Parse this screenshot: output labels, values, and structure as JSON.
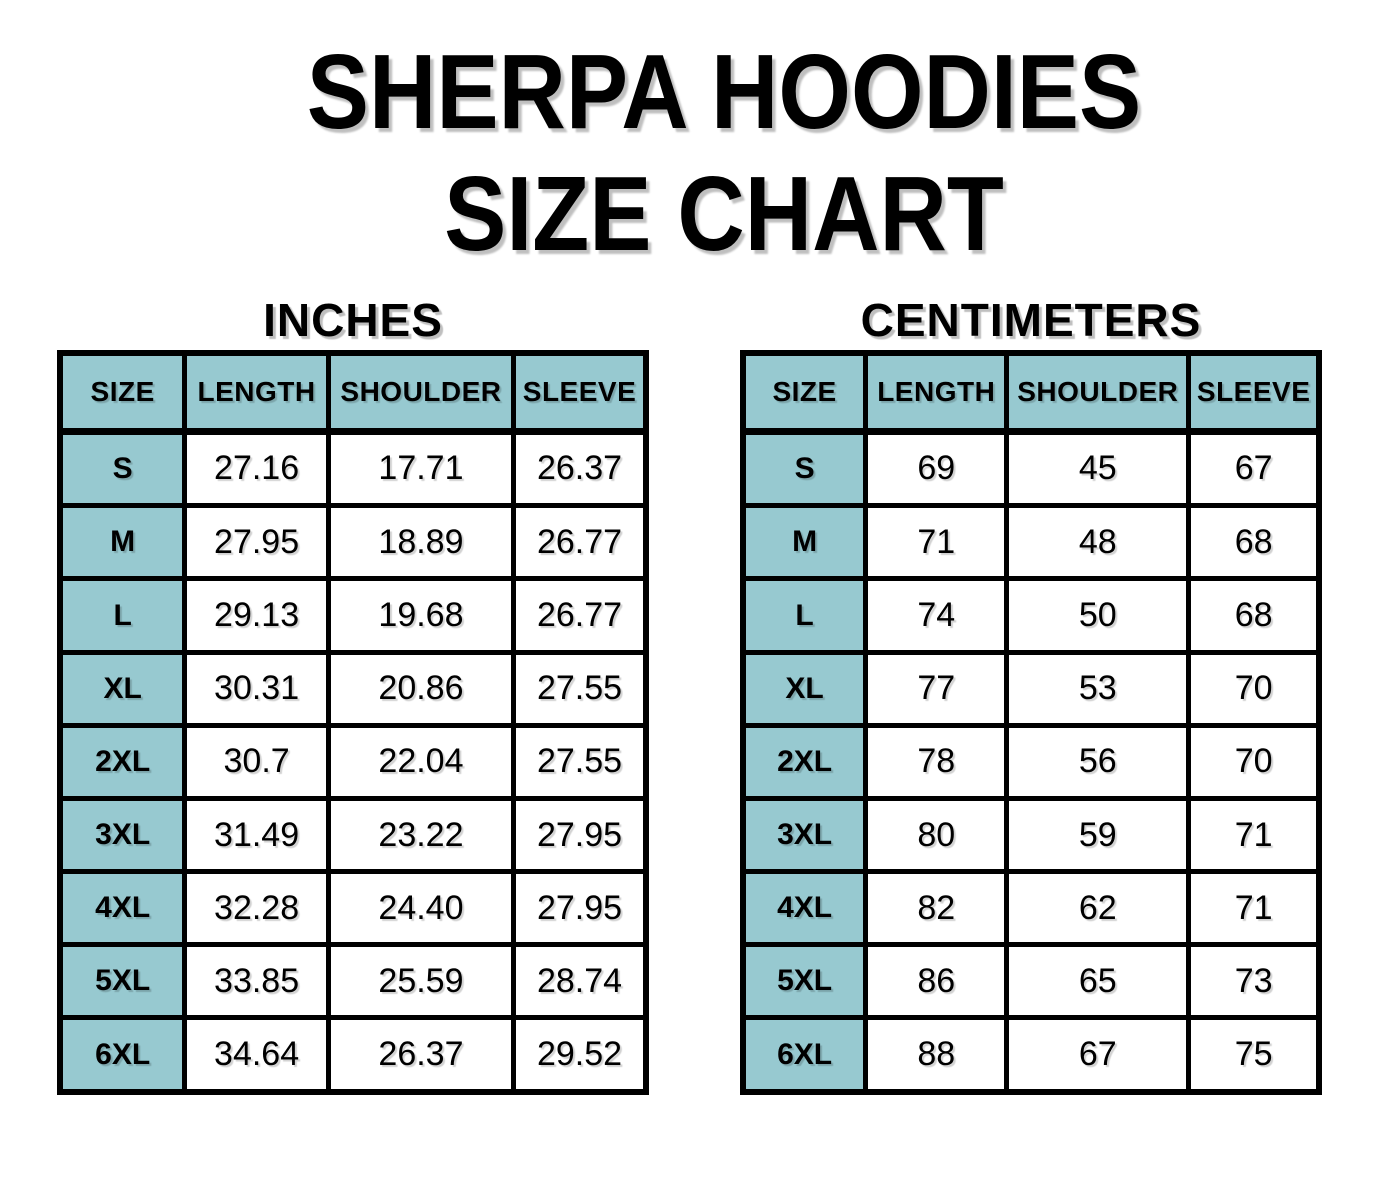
{
  "page": {
    "title_line1": "SHERPA HOODIES",
    "title_line2": "SIZE CHART"
  },
  "colors": {
    "header_fill": "#97C9D0",
    "border": "#000000",
    "background": "#FFFFFF",
    "text": "#000000"
  },
  "tables": [
    {
      "heading": "INCHES",
      "columns": [
        "SIZE",
        "LENGTH",
        "SHOULDER",
        "SLEEVE"
      ],
      "rows": [
        [
          "S",
          "27.16",
          "17.71",
          "26.37"
        ],
        [
          "M",
          "27.95",
          "18.89",
          "26.77"
        ],
        [
          "L",
          "29.13",
          "19.68",
          "26.77"
        ],
        [
          "XL",
          "30.31",
          "20.86",
          "27.55"
        ],
        [
          "2XL",
          "30.7",
          "22.04",
          "27.55"
        ],
        [
          "3XL",
          "31.49",
          "23.22",
          "27.95"
        ],
        [
          "4XL",
          "32.28",
          "24.40",
          "27.95"
        ],
        [
          "5XL",
          "33.85",
          "25.59",
          "28.74"
        ],
        [
          "6XL",
          "34.64",
          "26.37",
          "29.52"
        ]
      ]
    },
    {
      "heading": "CENTIMETERS",
      "columns": [
        "SIZE",
        "LENGTH",
        "SHOULDER",
        "SLEEVE"
      ],
      "rows": [
        [
          "S",
          "69",
          "45",
          "67"
        ],
        [
          "M",
          "71",
          "48",
          "68"
        ],
        [
          "L",
          "74",
          "50",
          "68"
        ],
        [
          "XL",
          "77",
          "53",
          "70"
        ],
        [
          "2XL",
          "78",
          "56",
          "70"
        ],
        [
          "3XL",
          "80",
          "59",
          "71"
        ],
        [
          "4XL",
          "82",
          "62",
          "71"
        ],
        [
          "5XL",
          "86",
          "65",
          "73"
        ],
        [
          "6XL",
          "88",
          "67",
          "75"
        ]
      ]
    }
  ],
  "chart_data": [
    {
      "type": "table",
      "title": "INCHES",
      "columns": [
        "SIZE",
        "LENGTH",
        "SHOULDER",
        "SLEEVE"
      ],
      "rows": [
        [
          "S",
          27.16,
          17.71,
          26.37
        ],
        [
          "M",
          27.95,
          18.89,
          26.77
        ],
        [
          "L",
          29.13,
          19.68,
          26.77
        ],
        [
          "XL",
          30.31,
          20.86,
          27.55
        ],
        [
          "2XL",
          30.7,
          22.04,
          27.55
        ],
        [
          "3XL",
          31.49,
          23.22,
          27.95
        ],
        [
          "4XL",
          32.28,
          24.4,
          27.95
        ],
        [
          "5XL",
          33.85,
          25.59,
          28.74
        ],
        [
          "6XL",
          34.64,
          26.37,
          29.52
        ]
      ]
    },
    {
      "type": "table",
      "title": "CENTIMETERS",
      "columns": [
        "SIZE",
        "LENGTH",
        "SHOULDER",
        "SLEEVE"
      ],
      "rows": [
        [
          "S",
          69,
          45,
          67
        ],
        [
          "M",
          71,
          48,
          68
        ],
        [
          "L",
          74,
          50,
          68
        ],
        [
          "XL",
          77,
          53,
          70
        ],
        [
          "2XL",
          78,
          56,
          70
        ],
        [
          "3XL",
          80,
          59,
          71
        ],
        [
          "4XL",
          82,
          62,
          71
        ],
        [
          "5XL",
          86,
          65,
          73
        ],
        [
          "6XL",
          88,
          67,
          75
        ]
      ]
    }
  ]
}
